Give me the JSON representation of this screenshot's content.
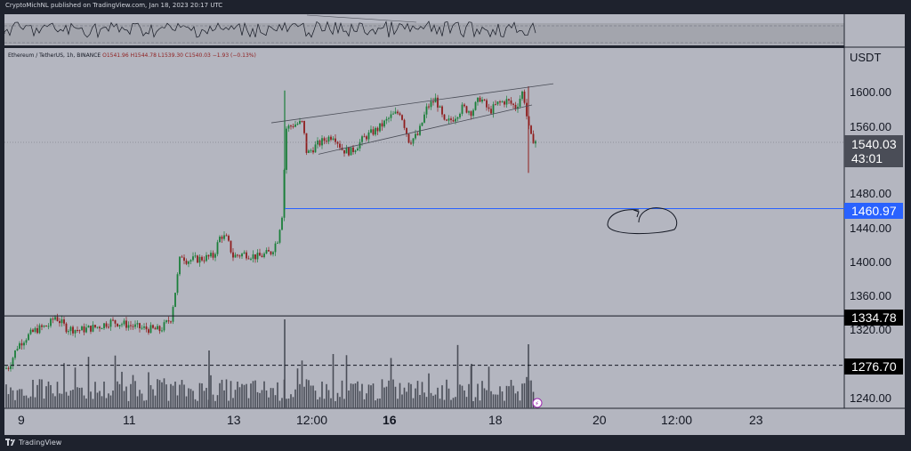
{
  "header": {
    "publish_text": "CryptoMichNL published on TradingView.com, Jan 18, 2023 20:17 UTC"
  },
  "legend": {
    "symbol": "Ethereum / TetherUS, 1h, BINANCE",
    "ohlc": "O1541.96  H1544.78  L1539.30  C1540.03  −1.93 (−0.13%)"
  },
  "price_axis": {
    "unit": "USDT",
    "ticks": [
      "1600.00",
      "1560.00",
      "1480.00",
      "1440.00",
      "1400.00",
      "1360.00",
      "1320.00",
      "1240.00"
    ],
    "last_price": "1540.03",
    "countdown": "43:01",
    "blue_level": "1460.97",
    "line_level_1": "1334.78",
    "line_level_2": "1276.70"
  },
  "time_axis": {
    "ticks": [
      "9",
      "11",
      "13",
      "12:00",
      "16",
      "18",
      "20",
      "12:00",
      "23"
    ]
  },
  "footer": {
    "brand": "TradingView"
  },
  "colors": {
    "up": "#1b7f3a",
    "down": "#8f1d1d",
    "blue_line": "#2962ff",
    "chart_bg": "#b4b6c0",
    "axis_bg": "#b4b6c0"
  },
  "chart_data": {
    "type": "candlestick",
    "title": "Ethereum / TetherUS, 1h, BINANCE",
    "ylabel": "USDT",
    "ylim": [
      1226,
      1650
    ],
    "x": [
      "9",
      "11",
      "13",
      "12:00",
      "16",
      "18",
      "20",
      "12:00",
      "23"
    ],
    "price_path": [
      [
        0,
        1270
      ],
      [
        10,
        1275
      ],
      [
        20,
        1300
      ],
      [
        30,
        1310
      ],
      [
        40,
        1318
      ],
      [
        55,
        1324
      ],
      [
        62,
        1334
      ],
      [
        75,
        1320
      ],
      [
        90,
        1318
      ],
      [
        110,
        1322
      ],
      [
        125,
        1328
      ],
      [
        140,
        1325
      ],
      [
        160,
        1320
      ],
      [
        180,
        1318
      ],
      [
        192,
        1332
      ],
      [
        198,
        1370
      ],
      [
        203,
        1408
      ],
      [
        210,
        1400
      ],
      [
        225,
        1402
      ],
      [
        240,
        1405
      ],
      [
        248,
        1430
      ],
      [
        255,
        1425
      ],
      [
        262,
        1405
      ],
      [
        275,
        1408
      ],
      [
        290,
        1404
      ],
      [
        305,
        1410
      ],
      [
        312,
        1425
      ],
      [
        318,
        1460
      ],
      [
        321,
        1555
      ],
      [
        330,
        1560
      ],
      [
        340,
        1562
      ],
      [
        345,
        1525
      ],
      [
        355,
        1535
      ],
      [
        365,
        1542
      ],
      [
        375,
        1548
      ],
      [
        385,
        1530
      ],
      [
        395,
        1528
      ],
      [
        410,
        1545
      ],
      [
        425,
        1555
      ],
      [
        440,
        1570
      ],
      [
        450,
        1575
      ],
      [
        460,
        1540
      ],
      [
        470,
        1548
      ],
      [
        480,
        1580
      ],
      [
        490,
        1590
      ],
      [
        500,
        1560
      ],
      [
        510,
        1568
      ],
      [
        520,
        1580
      ],
      [
        530,
        1575
      ],
      [
        540,
        1592
      ],
      [
        550,
        1575
      ],
      [
        560,
        1585
      ],
      [
        570,
        1588
      ],
      [
        580,
        1580
      ],
      [
        588,
        1600
      ],
      [
        592,
        1570
      ],
      [
        596,
        1545
      ],
      [
        603,
        1540
      ]
    ],
    "horizontal_lines": [
      1460.97,
      1334.78,
      1276.7
    ],
    "channel": {
      "upper": [
        [
          305,
          1562
        ],
        [
          622,
          1608
        ]
      ],
      "lower": [
        [
          358,
          1525
        ],
        [
          598,
          1583
        ]
      ]
    }
  }
}
